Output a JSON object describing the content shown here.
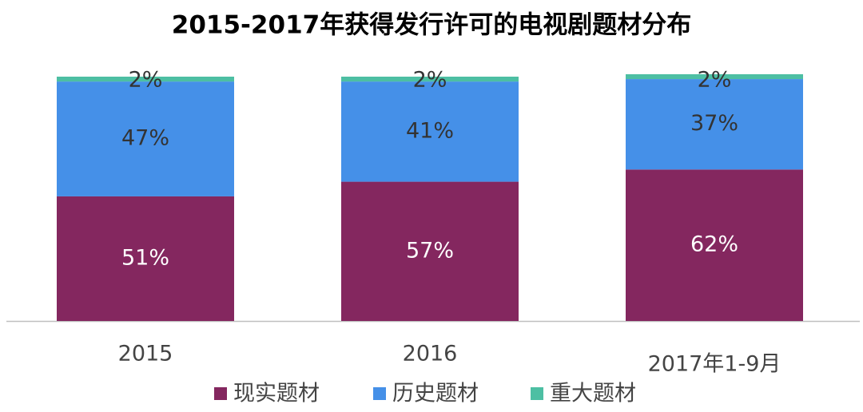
{
  "chart_data": {
    "type": "stacked-bar",
    "title": "2015-2017年获得发行许可的电视剧题材分布",
    "categories": [
      "2015",
      "2016",
      "2017年1-9月"
    ],
    "series": [
      {
        "name": "现实题材",
        "color": "#84275f",
        "values": [
          51,
          57,
          62
        ],
        "value_labels": [
          "51%",
          "57%",
          "62%"
        ]
      },
      {
        "name": "历史题材",
        "color": "#4590e8",
        "values": [
          47,
          41,
          37
        ],
        "value_labels": [
          "47%",
          "41%",
          "37%"
        ]
      },
      {
        "name": "重大题材",
        "color": "#4dbfa3",
        "values": [
          2,
          2,
          2
        ],
        "value_labels": [
          "2%",
          "2%",
          "2%"
        ]
      }
    ]
  }
}
